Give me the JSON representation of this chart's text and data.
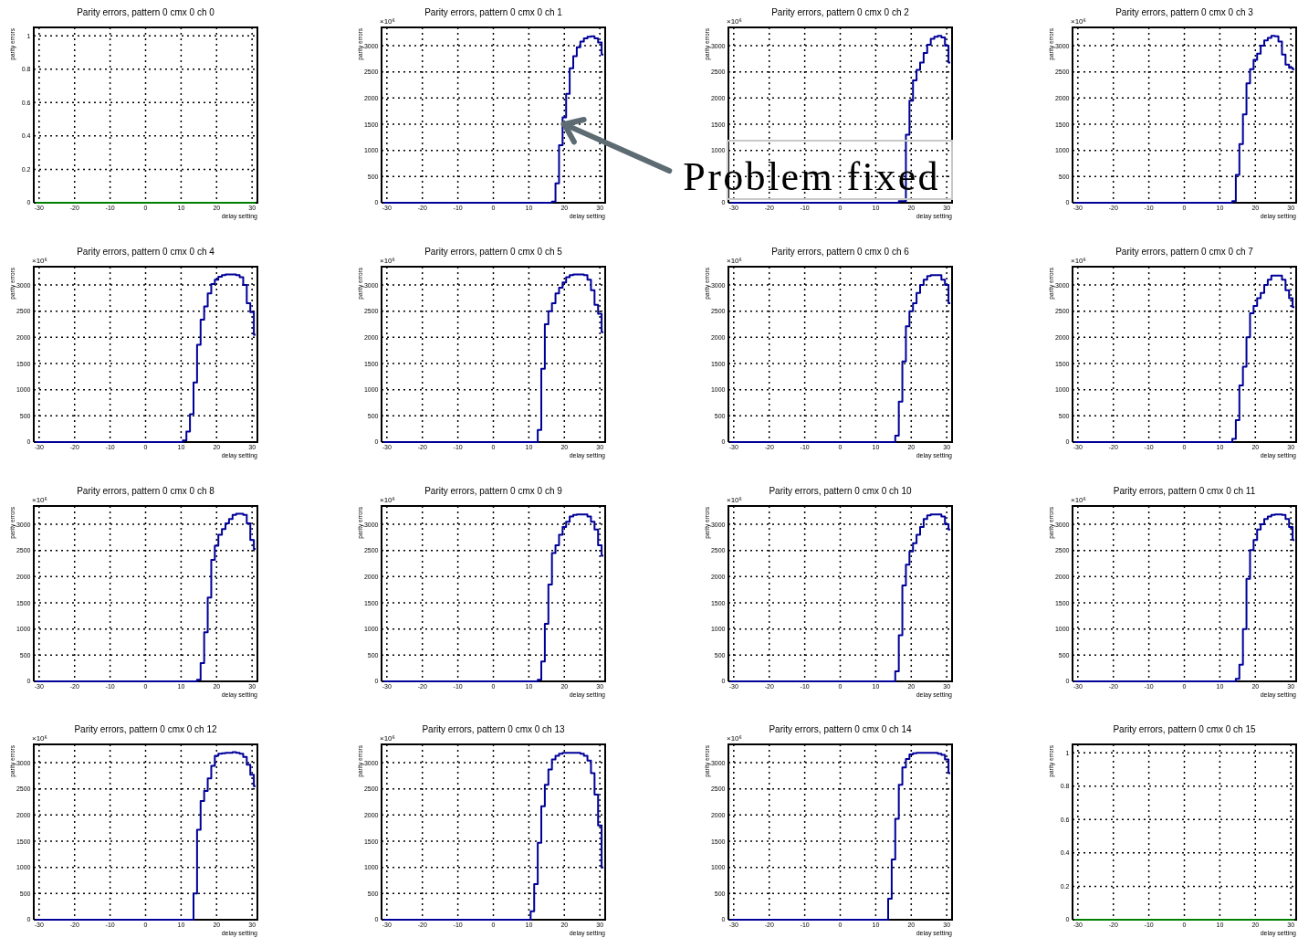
{
  "chart_data": [
    {
      "type": "step",
      "title": "Parity errors, pattern 0 cmx 0 ch 0",
      "xlabel": "delay setting",
      "ylabel": "parity errors",
      "x": [
        -31,
        -30,
        -29,
        -28,
        -27,
        -26,
        -25,
        -24,
        -23,
        -22,
        -21,
        -20,
        -19,
        -18,
        -17,
        -16,
        -15,
        -14,
        -13,
        -12,
        -11,
        -10,
        -9,
        -8,
        -7,
        -6,
        -5,
        -4,
        -3,
        -2,
        -1,
        0,
        1,
        2,
        3,
        4,
        5,
        6,
        7,
        8,
        9,
        10,
        11,
        12,
        13,
        14,
        15,
        16,
        17,
        18,
        19,
        20,
        21,
        22,
        23,
        24,
        25,
        26,
        27,
        28,
        29,
        30,
        31
      ],
      "values": [
        0,
        0,
        0,
        0,
        0,
        0,
        0,
        0,
        0,
        0,
        0,
        0,
        0,
        0,
        0,
        0,
        0,
        0,
        0,
        0,
        0,
        0,
        0,
        0,
        0,
        0,
        0,
        0,
        0,
        0,
        0,
        0,
        0,
        0,
        0,
        0,
        0,
        0,
        0,
        0,
        0,
        0,
        0,
        0,
        0,
        0,
        0,
        0,
        0,
        0,
        0,
        0,
        0,
        0,
        0,
        0,
        0,
        0,
        0,
        0,
        0,
        0,
        0
      ],
      "color": "#008000",
      "xlim": [
        -31.5,
        31.5
      ],
      "xticks": [
        -30,
        -20,
        -10,
        0,
        10,
        20,
        30
      ],
      "ylim": [
        0,
        1.05
      ],
      "yticks": [
        0,
        0.2,
        0.4,
        0.6,
        0.8,
        1
      ],
      "grid": true
    },
    {
      "type": "step",
      "title": "Parity errors, pattern 0 cmx 0 ch 1",
      "xlabel": "delay setting",
      "ylabel": "parity errors",
      "x": [
        -31,
        -30,
        -29,
        -28,
        -27,
        -26,
        -25,
        -24,
        -23,
        -22,
        -21,
        -20,
        -19,
        -18,
        -17,
        -16,
        -15,
        -14,
        -13,
        -12,
        -11,
        -10,
        -9,
        -8,
        -7,
        -6,
        -5,
        -4,
        -3,
        -2,
        -1,
        0,
        1,
        2,
        3,
        4,
        5,
        6,
        7,
        8,
        9,
        10,
        11,
        12,
        13,
        14,
        15,
        16,
        17,
        18,
        19,
        20,
        21,
        22,
        23,
        24,
        25,
        26,
        27,
        28,
        29,
        30,
        31
      ],
      "values": [
        0,
        0,
        0,
        0,
        0,
        0,
        0,
        0,
        0,
        0,
        0,
        0,
        0,
        0,
        0,
        0,
        0,
        0,
        0,
        0,
        0,
        0,
        0,
        0,
        0,
        0,
        0,
        0,
        0,
        0,
        0,
        0,
        0,
        0,
        0,
        0,
        0,
        0,
        0,
        0,
        0,
        0,
        0,
        0,
        0,
        0,
        0,
        0,
        20,
        370,
        1100,
        1630,
        2080,
        2570,
        2800,
        2970,
        3080,
        3140,
        3170,
        3180,
        3140,
        3060,
        2830
      ],
      "color": "#000099",
      "xlim": [
        -31.5,
        31.5
      ],
      "xticks": [
        -30,
        -20,
        -10,
        0,
        10,
        20,
        30
      ],
      "ylim": [
        0,
        3350
      ],
      "yticks": [
        0,
        500,
        1000,
        1500,
        2000,
        2500,
        3000
      ],
      "grid": true,
      "annotations": [
        "×10⁶",
        {
          "text": "Problem fixed",
          "x": 20,
          "y": 1500
        }
      ]
    },
    {
      "type": "step",
      "title": "Parity errors, pattern 0 cmx 0 ch 2",
      "xlabel": "delay setting",
      "ylabel": "parity errors",
      "x": [
        -31,
        -30,
        -29,
        -28,
        -27,
        -26,
        -25,
        -24,
        -23,
        -22,
        -21,
        -20,
        -19,
        -18,
        -17,
        -16,
        -15,
        -14,
        -13,
        -12,
        -11,
        -10,
        -9,
        -8,
        -7,
        -6,
        -5,
        -4,
        -3,
        -2,
        -1,
        0,
        1,
        2,
        3,
        4,
        5,
        6,
        7,
        8,
        9,
        10,
        11,
        12,
        13,
        14,
        15,
        16,
        17,
        18,
        19,
        20,
        21,
        22,
        23,
        24,
        25,
        26,
        27,
        28,
        29,
        30,
        31
      ],
      "values": [
        0,
        0,
        0,
        0,
        0,
        0,
        0,
        0,
        0,
        0,
        0,
        0,
        0,
        0,
        0,
        0,
        0,
        0,
        0,
        0,
        0,
        0,
        0,
        0,
        0,
        0,
        0,
        0,
        0,
        0,
        0,
        0,
        0,
        0,
        0,
        0,
        0,
        0,
        0,
        0,
        0,
        0,
        0,
        0,
        0,
        0,
        0,
        0,
        30,
        30,
        1300,
        1950,
        2340,
        2540,
        2680,
        2860,
        3020,
        3130,
        3170,
        3190,
        3160,
        3000,
        2680
      ],
      "color": "#000099",
      "xlim": [
        -31.5,
        31.5
      ],
      "xticks": [
        -30,
        -20,
        -10,
        0,
        10,
        20,
        30
      ],
      "ylim": [
        0,
        3350
      ],
      "yticks": [
        0,
        {
          "value": 500,
          "label": null
        },
        1000,
        1500,
        2000,
        2500,
        3000
      ],
      "grid": true,
      "annotations": [
        "×10⁶"
      ]
    },
    {
      "type": "step",
      "title": "Parity errors, pattern 0 cmx 0 ch 3",
      "xlabel": "delay setting",
      "ylabel": "parity errors",
      "x": [
        -31,
        -30,
        -29,
        -28,
        -27,
        -26,
        -25,
        -24,
        -23,
        -22,
        -21,
        -20,
        -19,
        -18,
        -17,
        -16,
        -15,
        -14,
        -13,
        -12,
        -11,
        -10,
        -9,
        -8,
        -7,
        -6,
        -5,
        -4,
        -3,
        -2,
        -1,
        0,
        1,
        2,
        3,
        4,
        5,
        6,
        7,
        8,
        9,
        10,
        11,
        12,
        13,
        14,
        15,
        16,
        17,
        18,
        19,
        20,
        21,
        22,
        23,
        24,
        25,
        26,
        27,
        28,
        29,
        30,
        31
      ],
      "values": [
        0,
        0,
        0,
        0,
        0,
        0,
        0,
        0,
        0,
        0,
        0,
        0,
        0,
        0,
        0,
        0,
        0,
        0,
        0,
        0,
        0,
        0,
        0,
        0,
        0,
        0,
        0,
        0,
        0,
        0,
        0,
        0,
        0,
        0,
        0,
        0,
        0,
        0,
        0,
        0,
        0,
        0,
        0,
        0,
        0,
        30,
        530,
        1120,
        1690,
        2280,
        2550,
        2730,
        2850,
        3000,
        3100,
        3150,
        3190,
        3180,
        3080,
        2830,
        2640,
        2580,
        2550
      ],
      "color": "#000099",
      "xlim": [
        -31.5,
        31.5
      ],
      "xticks": [
        -30,
        -20,
        -10,
        0,
        10,
        20,
        30
      ],
      "ylim": [
        0,
        3350
      ],
      "yticks": [
        0,
        500,
        1000,
        1500,
        2000,
        2500,
        3000
      ],
      "grid": true,
      "annotations": [
        "×10⁶"
      ]
    },
    {
      "type": "step",
      "title": "Parity errors, pattern 0 cmx 0 ch 4",
      "xlabel": "delay setting",
      "ylabel": "parity errors",
      "x": [
        -31,
        -30,
        -29,
        -28,
        -27,
        -26,
        -25,
        -24,
        -23,
        -22,
        -21,
        -20,
        -19,
        -18,
        -17,
        -16,
        -15,
        -14,
        -13,
        -12,
        -11,
        -10,
        -9,
        -8,
        -7,
        -6,
        -5,
        -4,
        -3,
        -2,
        -1,
        0,
        1,
        2,
        3,
        4,
        5,
        6,
        7,
        8,
        9,
        10,
        11,
        12,
        13,
        14,
        15,
        16,
        17,
        18,
        19,
        20,
        21,
        22,
        23,
        24,
        25,
        26,
        27,
        28,
        29,
        30,
        31
      ],
      "values": [
        0,
        0,
        0,
        0,
        0,
        0,
        0,
        0,
        0,
        0,
        0,
        0,
        0,
        0,
        0,
        0,
        0,
        0,
        0,
        0,
        0,
        0,
        0,
        0,
        0,
        0,
        0,
        0,
        0,
        0,
        0,
        0,
        0,
        0,
        0,
        0,
        0,
        0,
        0,
        0,
        0,
        0,
        30,
        200,
        530,
        1140,
        1860,
        2340,
        2590,
        2840,
        3020,
        3100,
        3160,
        3190,
        3200,
        3200,
        3200,
        3190,
        3150,
        3000,
        2650,
        2480,
        2050
      ],
      "color": "#000099",
      "xlim": [
        -31.5,
        31.5
      ],
      "xticks": [
        -30,
        -20,
        -10,
        0,
        10,
        20,
        30
      ],
      "ylim": [
        0,
        3350
      ],
      "yticks": [
        0,
        500,
        1000,
        1500,
        2000,
        2500,
        3000
      ],
      "grid": true,
      "annotations": [
        "×10⁶"
      ]
    },
    {
      "type": "step",
      "title": "Parity errors, pattern 0 cmx 0 ch 5",
      "xlabel": "delay setting",
      "ylabel": "parity errors",
      "x": [
        -31,
        -30,
        -29,
        -28,
        -27,
        -26,
        -25,
        -24,
        -23,
        -22,
        -21,
        -20,
        -19,
        -18,
        -17,
        -16,
        -15,
        -14,
        -13,
        -12,
        -11,
        -10,
        -9,
        -8,
        -7,
        -6,
        -5,
        -4,
        -3,
        -2,
        -1,
        0,
        1,
        2,
        3,
        4,
        5,
        6,
        7,
        8,
        9,
        10,
        11,
        12,
        13,
        14,
        15,
        16,
        17,
        18,
        19,
        20,
        21,
        22,
        23,
        24,
        25,
        26,
        27,
        28,
        29,
        30,
        31
      ],
      "values": [
        0,
        0,
        0,
        0,
        0,
        0,
        0,
        0,
        0,
        0,
        0,
        0,
        0,
        0,
        0,
        0,
        0,
        0,
        0,
        0,
        0,
        0,
        0,
        0,
        0,
        0,
        0,
        0,
        0,
        0,
        0,
        0,
        0,
        0,
        0,
        0,
        0,
        0,
        0,
        0,
        0,
        0,
        0,
        0,
        230,
        1400,
        2250,
        2500,
        2650,
        2840,
        2950,
        3050,
        3150,
        3190,
        3200,
        3200,
        3200,
        3190,
        3100,
        2900,
        2620,
        2450,
        2100
      ],
      "color": "#000099",
      "xlim": [
        -31.5,
        31.5
      ],
      "xticks": [
        -30,
        -20,
        -10,
        0,
        10,
        20,
        30
      ],
      "ylim": [
        0,
        3350
      ],
      "yticks": [
        0,
        500,
        1000,
        1500,
        2000,
        2500,
        3000
      ],
      "grid": true,
      "annotations": [
        "×10⁶"
      ]
    },
    {
      "type": "step",
      "title": "Parity errors, pattern 0 cmx 0 ch 6",
      "xlabel": "delay setting",
      "ylabel": "parity errors",
      "x": [
        -31,
        -30,
        -29,
        -28,
        -27,
        -26,
        -25,
        -24,
        -23,
        -22,
        -21,
        -20,
        -19,
        -18,
        -17,
        -16,
        -15,
        -14,
        -13,
        -12,
        -11,
        -10,
        -9,
        -8,
        -7,
        -6,
        -5,
        -4,
        -3,
        -2,
        -1,
        0,
        1,
        2,
        3,
        4,
        5,
        6,
        7,
        8,
        9,
        10,
        11,
        12,
        13,
        14,
        15,
        16,
        17,
        18,
        19,
        20,
        21,
        22,
        23,
        24,
        25,
        26,
        27,
        28,
        29,
        30,
        31
      ],
      "values": [
        0,
        0,
        0,
        0,
        0,
        0,
        0,
        0,
        0,
        0,
        0,
        0,
        0,
        0,
        0,
        0,
        0,
        0,
        0,
        0,
        0,
        0,
        0,
        0,
        0,
        0,
        0,
        0,
        0,
        0,
        0,
        0,
        0,
        0,
        0,
        0,
        0,
        0,
        0,
        0,
        0,
        0,
        0,
        0,
        0,
        0,
        0,
        120,
        770,
        1540,
        2210,
        2500,
        2650,
        2850,
        3000,
        3100,
        3170,
        3190,
        3190,
        3190,
        3100,
        3000,
        2650
      ],
      "color": "#000099",
      "xlim": [
        -31.5,
        31.5
      ],
      "xticks": [
        -30,
        -20,
        -10,
        0,
        10,
        20,
        30
      ],
      "ylim": [
        0,
        3350
      ],
      "yticks": [
        0,
        500,
        1000,
        1500,
        2000,
        2500,
        3000
      ],
      "grid": true,
      "annotations": [
        "×10⁶"
      ]
    },
    {
      "type": "step",
      "title": "Parity errors, pattern 0 cmx 0 ch 7",
      "xlabel": "delay setting",
      "ylabel": "parity errors",
      "x": [
        -31,
        -30,
        -29,
        -28,
        -27,
        -26,
        -25,
        -24,
        -23,
        -22,
        -21,
        -20,
        -19,
        -18,
        -17,
        -16,
        -15,
        -14,
        -13,
        -12,
        -11,
        -10,
        -9,
        -8,
        -7,
        -6,
        -5,
        -4,
        -3,
        -2,
        -1,
        0,
        1,
        2,
        3,
        4,
        5,
        6,
        7,
        8,
        9,
        10,
        11,
        12,
        13,
        14,
        15,
        16,
        17,
        18,
        19,
        20,
        21,
        22,
        23,
        24,
        25,
        26,
        27,
        28,
        29,
        30,
        31
      ],
      "values": [
        0,
        0,
        0,
        0,
        0,
        0,
        0,
        0,
        0,
        0,
        0,
        0,
        0,
        0,
        0,
        0,
        0,
        0,
        0,
        0,
        0,
        0,
        0,
        0,
        0,
        0,
        0,
        0,
        0,
        0,
        0,
        0,
        0,
        0,
        0,
        0,
        0,
        0,
        0,
        0,
        0,
        0,
        0,
        0,
        0,
        60,
        420,
        1080,
        1440,
        2000,
        2460,
        2600,
        2750,
        2850,
        3000,
        3100,
        3180,
        3180,
        3180,
        3100,
        2900,
        2750,
        2580
      ],
      "color": "#000099",
      "xlim": [
        -31.5,
        31.5
      ],
      "xticks": [
        -30,
        -20,
        -10,
        0,
        10,
        20,
        30
      ],
      "ylim": [
        0,
        3350
      ],
      "yticks": [
        0,
        500,
        1000,
        1500,
        2000,
        2500,
        3000
      ],
      "grid": true,
      "annotations": [
        "×10⁶"
      ]
    },
    {
      "type": "step",
      "title": "Parity errors, pattern 0 cmx 0 ch 8",
      "xlabel": "delay setting",
      "ylabel": "parity errors",
      "x": [
        -31,
        -30,
        -29,
        -28,
        -27,
        -26,
        -25,
        -24,
        -23,
        -22,
        -21,
        -20,
        -19,
        -18,
        -17,
        -16,
        -15,
        -14,
        -13,
        -12,
        -11,
        -10,
        -9,
        -8,
        -7,
        -6,
        -5,
        -4,
        -3,
        -2,
        -1,
        0,
        1,
        2,
        3,
        4,
        5,
        6,
        7,
        8,
        9,
        10,
        11,
        12,
        13,
        14,
        15,
        16,
        17,
        18,
        19,
        20,
        21,
        22,
        23,
        24,
        25,
        26,
        27,
        28,
        29,
        30,
        31
      ],
      "values": [
        0,
        0,
        0,
        0,
        0,
        0,
        0,
        0,
        0,
        0,
        0,
        0,
        0,
        0,
        0,
        0,
        0,
        0,
        0,
        0,
        0,
        0,
        0,
        0,
        0,
        0,
        0,
        0,
        0,
        0,
        0,
        0,
        0,
        0,
        0,
        0,
        0,
        0,
        0,
        0,
        0,
        0,
        0,
        0,
        0,
        0,
        30,
        350,
        940,
        1600,
        2320,
        2590,
        2800,
        2910,
        3020,
        3100,
        3180,
        3200,
        3200,
        3180,
        3020,
        2700,
        2530
      ],
      "color": "#000099",
      "xlim": [
        -31.5,
        31.5
      ],
      "xticks": [
        -30,
        -20,
        -10,
        0,
        10,
        20,
        30
      ],
      "ylim": [
        0,
        3350
      ],
      "yticks": [
        0,
        500,
        1000,
        1500,
        2000,
        2500,
        3000
      ],
      "grid": true,
      "annotations": [
        "×10⁶"
      ]
    },
    {
      "type": "step",
      "title": "Parity errors, pattern 0 cmx 0 ch 9",
      "xlabel": "delay setting",
      "ylabel": "parity errors",
      "x": [
        -31,
        -30,
        -29,
        -28,
        -27,
        -26,
        -25,
        -24,
        -23,
        -22,
        -21,
        -20,
        -19,
        -18,
        -17,
        -16,
        -15,
        -14,
        -13,
        -12,
        -11,
        -10,
        -9,
        -8,
        -7,
        -6,
        -5,
        -4,
        -3,
        -2,
        -1,
        0,
        1,
        2,
        3,
        4,
        5,
        6,
        7,
        8,
        9,
        10,
        11,
        12,
        13,
        14,
        15,
        16,
        17,
        18,
        19,
        20,
        21,
        22,
        23,
        24,
        25,
        26,
        27,
        28,
        29,
        30,
        31
      ],
      "values": [
        0,
        0,
        0,
        0,
        0,
        0,
        0,
        0,
        0,
        0,
        0,
        0,
        0,
        0,
        0,
        0,
        0,
        0,
        0,
        0,
        0,
        0,
        0,
        0,
        0,
        0,
        0,
        0,
        0,
        0,
        0,
        0,
        0,
        0,
        0,
        0,
        0,
        0,
        0,
        0,
        0,
        0,
        0,
        0,
        30,
        380,
        1100,
        1850,
        2450,
        2600,
        2800,
        2950,
        3050,
        3150,
        3180,
        3190,
        3190,
        3190,
        3150,
        3050,
        2900,
        2600,
        2400
      ],
      "color": "#000099",
      "xlim": [
        -31.5,
        31.5
      ],
      "xticks": [
        -30,
        -20,
        -10,
        0,
        10,
        20,
        30
      ],
      "ylim": [
        0,
        3350
      ],
      "yticks": [
        0,
        500,
        1000,
        1500,
        2000,
        2500,
        3000
      ],
      "grid": true,
      "annotations": [
        "×10⁶"
      ]
    },
    {
      "type": "step",
      "title": "Parity errors, pattern 0 cmx 0 ch 10",
      "xlabel": "delay setting",
      "ylabel": "parity errors",
      "x": [
        -31,
        -30,
        -29,
        -28,
        -27,
        -26,
        -25,
        -24,
        -23,
        -22,
        -21,
        -20,
        -19,
        -18,
        -17,
        -16,
        -15,
        -14,
        -13,
        -12,
        -11,
        -10,
        -9,
        -8,
        -7,
        -6,
        -5,
        -4,
        -3,
        -2,
        -1,
        0,
        1,
        2,
        3,
        4,
        5,
        6,
        7,
        8,
        9,
        10,
        11,
        12,
        13,
        14,
        15,
        16,
        17,
        18,
        19,
        20,
        21,
        22,
        23,
        24,
        25,
        26,
        27,
        28,
        29,
        30,
        31
      ],
      "values": [
        0,
        0,
        0,
        0,
        0,
        0,
        0,
        0,
        0,
        0,
        0,
        0,
        0,
        0,
        0,
        0,
        0,
        0,
        0,
        0,
        0,
        0,
        0,
        0,
        0,
        0,
        0,
        0,
        0,
        0,
        0,
        0,
        0,
        0,
        0,
        0,
        0,
        0,
        0,
        0,
        0,
        0,
        0,
        0,
        0,
        0,
        0,
        190,
        880,
        1830,
        2230,
        2480,
        2640,
        2800,
        2950,
        3100,
        3170,
        3190,
        3190,
        3190,
        3150,
        3000,
        2900
      ],
      "color": "#000099",
      "xlim": [
        -31.5,
        31.5
      ],
      "xticks": [
        -30,
        -20,
        -10,
        0,
        10,
        20,
        30
      ],
      "ylim": [
        0,
        3350
      ],
      "yticks": [
        0,
        500,
        1000,
        1500,
        2000,
        2500,
        3000
      ],
      "grid": true,
      "annotations": [
        "×10⁶"
      ]
    },
    {
      "type": "step",
      "title": "Parity errors, pattern 0 cmx 0 ch 11",
      "xlabel": "delay setting",
      "ylabel": "parity errors",
      "x": [
        -31,
        -30,
        -29,
        -28,
        -27,
        -26,
        -25,
        -24,
        -23,
        -22,
        -21,
        -20,
        -19,
        -18,
        -17,
        -16,
        -15,
        -14,
        -13,
        -12,
        -11,
        -10,
        -9,
        -8,
        -7,
        -6,
        -5,
        -4,
        -3,
        -2,
        -1,
        0,
        1,
        2,
        3,
        4,
        5,
        6,
        7,
        8,
        9,
        10,
        11,
        12,
        13,
        14,
        15,
        16,
        17,
        18,
        19,
        20,
        21,
        22,
        23,
        24,
        25,
        26,
        27,
        28,
        29,
        30,
        31
      ],
      "values": [
        0,
        0,
        0,
        0,
        0,
        0,
        0,
        0,
        0,
        0,
        0,
        0,
        0,
        0,
        0,
        0,
        0,
        0,
        0,
        0,
        0,
        0,
        0,
        0,
        0,
        0,
        0,
        0,
        0,
        0,
        0,
        0,
        0,
        0,
        0,
        0,
        0,
        0,
        0,
        0,
        0,
        0,
        0,
        0,
        0,
        0,
        50,
        320,
        1000,
        1960,
        2510,
        2700,
        2900,
        3000,
        3100,
        3150,
        3180,
        3190,
        3190,
        3180,
        3100,
        2950,
        2700
      ],
      "color": "#000099",
      "xlim": [
        -31.5,
        31.5
      ],
      "xticks": [
        -30,
        -20,
        -10,
        0,
        10,
        20,
        30
      ],
      "ylim": [
        0,
        3350
      ],
      "yticks": [
        0,
        500,
        1000,
        1500,
        2000,
        2500,
        3000
      ],
      "grid": true,
      "annotations": [
        "×10⁶"
      ]
    },
    {
      "type": "step",
      "title": "Parity errors, pattern 0 cmx 0 ch 12",
      "xlabel": "delay setting",
      "ylabel": "parity errors",
      "x": [
        -31,
        -30,
        -29,
        -28,
        -27,
        -26,
        -25,
        -24,
        -23,
        -22,
        -21,
        -20,
        -19,
        -18,
        -17,
        -16,
        -15,
        -14,
        -13,
        -12,
        -11,
        -10,
        -9,
        -8,
        -7,
        -6,
        -5,
        -4,
        -3,
        -2,
        -1,
        0,
        1,
        2,
        3,
        4,
        5,
        6,
        7,
        8,
        9,
        10,
        11,
        12,
        13,
        14,
        15,
        16,
        17,
        18,
        19,
        20,
        21,
        22,
        23,
        24,
        25,
        26,
        27,
        28,
        29,
        30,
        31
      ],
      "values": [
        0,
        0,
        0,
        0,
        0,
        0,
        0,
        0,
        0,
        0,
        0,
        0,
        0,
        0,
        0,
        0,
        0,
        0,
        0,
        0,
        0,
        0,
        0,
        0,
        0,
        0,
        0,
        0,
        0,
        0,
        0,
        0,
        0,
        0,
        0,
        0,
        0,
        0,
        0,
        0,
        0,
        0,
        0,
        0,
        0,
        500,
        1720,
        2270,
        2460,
        2700,
        2940,
        3130,
        3170,
        3180,
        3190,
        3190,
        3200,
        3190,
        3170,
        3110,
        2960,
        2770,
        2550
      ],
      "color": "#000099",
      "xlim": [
        -31.5,
        31.5
      ],
      "xticks": [
        -30,
        -20,
        -10,
        0,
        10,
        20,
        30
      ],
      "ylim": [
        0,
        3350
      ],
      "yticks": [
        0,
        500,
        1000,
        1500,
        2000,
        2500,
        3000
      ],
      "grid": true,
      "annotations": [
        "×10⁶"
      ]
    },
    {
      "type": "step",
      "title": "Parity errors, pattern 0 cmx 0 ch 13",
      "xlabel": "delay setting",
      "ylabel": "parity errors",
      "x": [
        -31,
        -30,
        -29,
        -28,
        -27,
        -26,
        -25,
        -24,
        -23,
        -22,
        -21,
        -20,
        -19,
        -18,
        -17,
        -16,
        -15,
        -14,
        -13,
        -12,
        -11,
        -10,
        -9,
        -8,
        -7,
        -6,
        -5,
        -4,
        -3,
        -2,
        -1,
        0,
        1,
        2,
        3,
        4,
        5,
        6,
        7,
        8,
        9,
        10,
        11,
        12,
        13,
        14,
        15,
        16,
        17,
        18,
        19,
        20,
        21,
        22,
        23,
        24,
        25,
        26,
        27,
        28,
        29,
        30,
        31
      ],
      "values": [
        0,
        0,
        0,
        0,
        0,
        0,
        0,
        0,
        0,
        0,
        0,
        0,
        0,
        0,
        0,
        0,
        0,
        0,
        0,
        0,
        0,
        0,
        0,
        0,
        0,
        0,
        0,
        0,
        0,
        0,
        0,
        0,
        0,
        0,
        0,
        0,
        0,
        0,
        0,
        0,
        0,
        0,
        160,
        680,
        1470,
        2170,
        2580,
        2870,
        3060,
        3130,
        3170,
        3190,
        3190,
        3190,
        3190,
        3190,
        3170,
        3130,
        3040,
        2800,
        2390,
        1800,
        1000
      ],
      "color": "#000099",
      "xlim": [
        -31.5,
        31.5
      ],
      "xticks": [
        -30,
        -20,
        -10,
        0,
        10,
        20,
        30
      ],
      "ylim": [
        0,
        3350
      ],
      "yticks": [
        0,
        500,
        1000,
        1500,
        2000,
        2500,
        3000
      ],
      "grid": true,
      "annotations": [
        "×10⁶"
      ]
    },
    {
      "type": "step",
      "title": "Parity errors, pattern 0 cmx 0 ch 14",
      "xlabel": "delay setting",
      "ylabel": "parity errors",
      "x": [
        -31,
        -30,
        -29,
        -28,
        -27,
        -26,
        -25,
        -24,
        -23,
        -22,
        -21,
        -20,
        -19,
        -18,
        -17,
        -16,
        -15,
        -14,
        -13,
        -12,
        -11,
        -10,
        -9,
        -8,
        -7,
        -6,
        -5,
        -4,
        -3,
        -2,
        -1,
        0,
        1,
        2,
        3,
        4,
        5,
        6,
        7,
        8,
        9,
        10,
        11,
        12,
        13,
        14,
        15,
        16,
        17,
        18,
        19,
        20,
        21,
        22,
        23,
        24,
        25,
        26,
        27,
        28,
        29,
        30,
        31
      ],
      "values": [
        0,
        0,
        0,
        0,
        0,
        0,
        0,
        0,
        0,
        0,
        0,
        0,
        0,
        0,
        0,
        0,
        0,
        0,
        0,
        0,
        0,
        0,
        0,
        0,
        0,
        0,
        0,
        0,
        0,
        0,
        0,
        0,
        0,
        0,
        0,
        0,
        0,
        0,
        0,
        0,
        0,
        0,
        0,
        0,
        0,
        400,
        1150,
        1930,
        2580,
        2910,
        3070,
        3160,
        3180,
        3190,
        3190,
        3190,
        3190,
        3190,
        3190,
        3170,
        3150,
        3060,
        2800
      ],
      "color": "#000099",
      "xlim": [
        -31.5,
        31.5
      ],
      "xticks": [
        -30,
        -20,
        -10,
        0,
        10,
        20,
        30
      ],
      "ylim": [
        0,
        3350
      ],
      "yticks": [
        0,
        500,
        1000,
        1500,
        2000,
        2500,
        3000
      ],
      "grid": true,
      "annotations": [
        "×10⁶"
      ]
    },
    {
      "type": "step",
      "title": "Parity errors, pattern 0 cmx 0 ch 15",
      "xlabel": "delay setting",
      "ylabel": "parity errors",
      "x": [
        -31,
        -30,
        -29,
        -28,
        -27,
        -26,
        -25,
        -24,
        -23,
        -22,
        -21,
        -20,
        -19,
        -18,
        -17,
        -16,
        -15,
        -14,
        -13,
        -12,
        -11,
        -10,
        -9,
        -8,
        -7,
        -6,
        -5,
        -4,
        -3,
        -2,
        -1,
        0,
        1,
        2,
        3,
        4,
        5,
        6,
        7,
        8,
        9,
        10,
        11,
        12,
        13,
        14,
        15,
        16,
        17,
        18,
        19,
        20,
        21,
        22,
        23,
        24,
        25,
        26,
        27,
        28,
        29,
        30,
        31
      ],
      "values": [
        0,
        0,
        0,
        0,
        0,
        0,
        0,
        0,
        0,
        0,
        0,
        0,
        0,
        0,
        0,
        0,
        0,
        0,
        0,
        0,
        0,
        0,
        0,
        0,
        0,
        0,
        0,
        0,
        0,
        0,
        0,
        0,
        0,
        0,
        0,
        0,
        0,
        0,
        0,
        0,
        0,
        0,
        0,
        0,
        0,
        0,
        0,
        0,
        0,
        0,
        0,
        0,
        0,
        0,
        0,
        0,
        0,
        0,
        0,
        0,
        0,
        0,
        0
      ],
      "color": "#008000",
      "xlim": [
        -31.5,
        31.5
      ],
      "xticks": [
        -30,
        -20,
        -10,
        0,
        10,
        20,
        30
      ],
      "ylim": [
        0,
        1.05
      ],
      "yticks": [
        0,
        0.2,
        0.4,
        0.6,
        0.8,
        1
      ],
      "grid": true
    }
  ]
}
